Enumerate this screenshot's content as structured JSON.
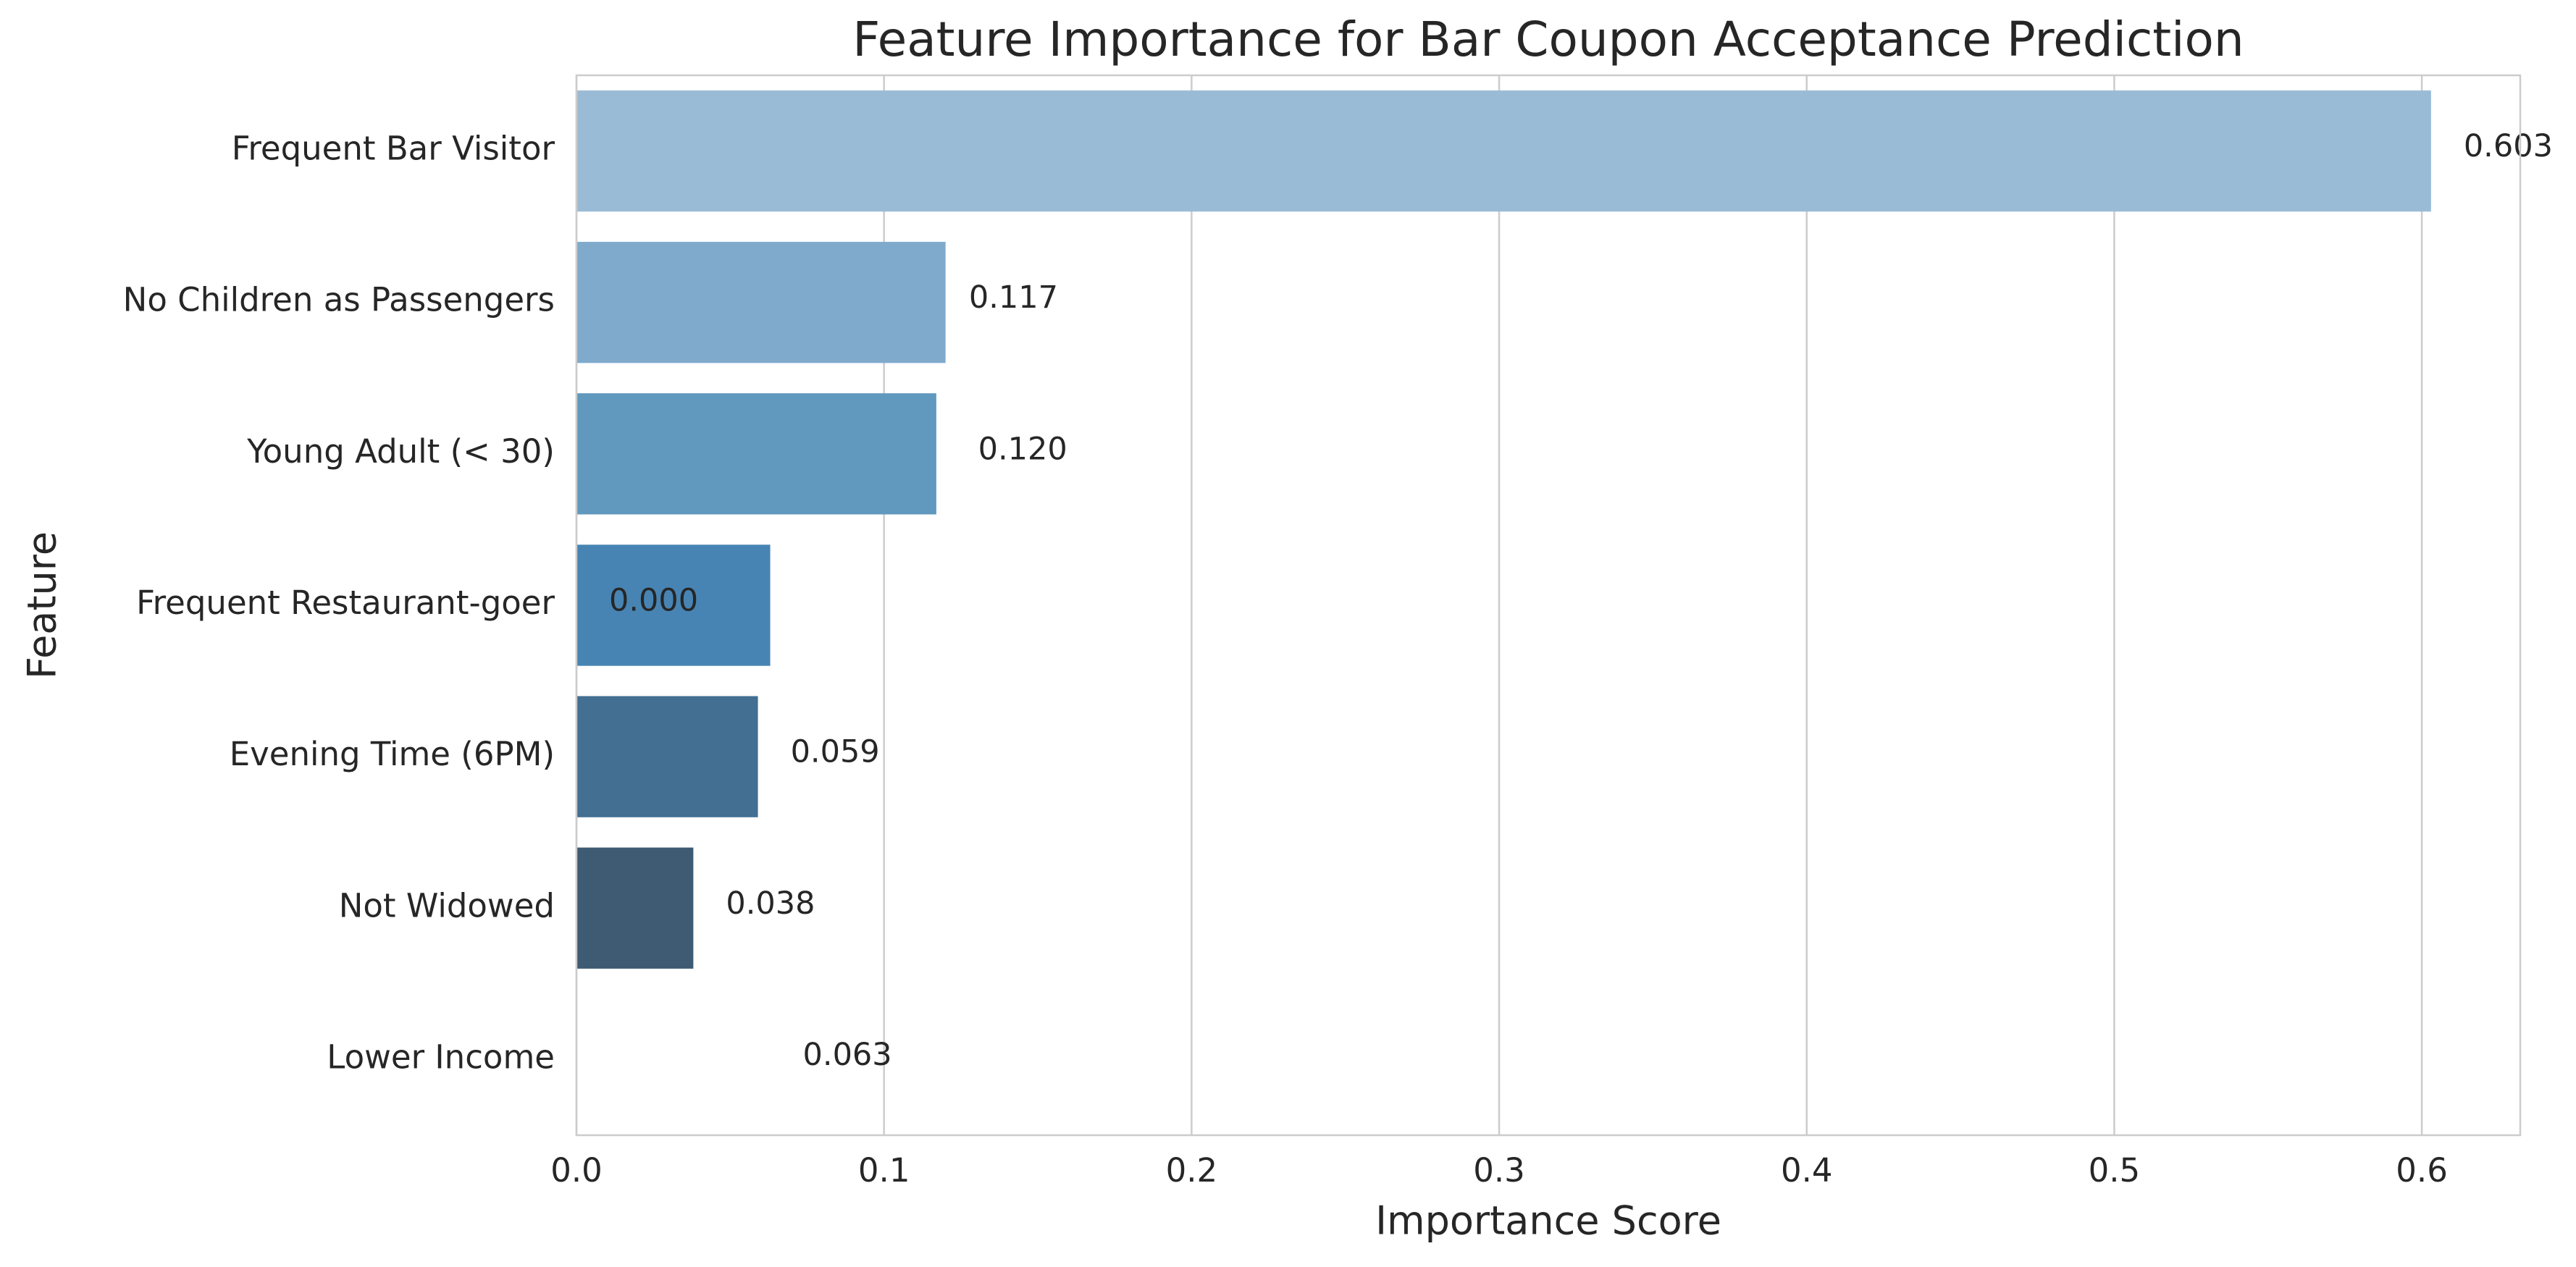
{
  "chart_data": {
    "type": "barh",
    "title": "Feature Importance for Bar Coupon Acceptance Prediction",
    "x_label": "Importance Score",
    "y_label": "Feature",
    "categories": [
      "Frequent Bar Visitor",
      "No Children as Passengers",
      "Young Adult (< 30)",
      "Frequent Restaurant-goer",
      "Evening Time (6PM)",
      "Not Widowed",
      "Lower Income"
    ],
    "values": [
      0.603,
      0.12,
      0.117,
      0.063,
      0.059,
      0.038,
      0.0
    ],
    "colors": [
      "#9abbd6",
      "#7faacb",
      "#6098be",
      "#4784b3",
      "#426f92",
      "#3e5b73",
      "#3a4a5a"
    ],
    "annotations": [
      {
        "value": 0.603,
        "label": "0.603"
      },
      {
        "value": 0.117,
        "label": "0.117"
      },
      {
        "value": 0.12,
        "label": "0.120"
      },
      {
        "value": 0.0,
        "label": "0.000"
      },
      {
        "value": 0.059,
        "label": "0.059"
      },
      {
        "value": 0.038,
        "label": "0.038"
      },
      {
        "value": 0.063,
        "label": "0.063"
      }
    ],
    "xlim": [
      0,
      0.632
    ],
    "xticks": [
      {
        "value": 0,
        "label": "0.0"
      },
      0.1,
      0.2,
      0.3,
      0.4,
      0.5,
      0.6
    ],
    "grid": true
  }
}
